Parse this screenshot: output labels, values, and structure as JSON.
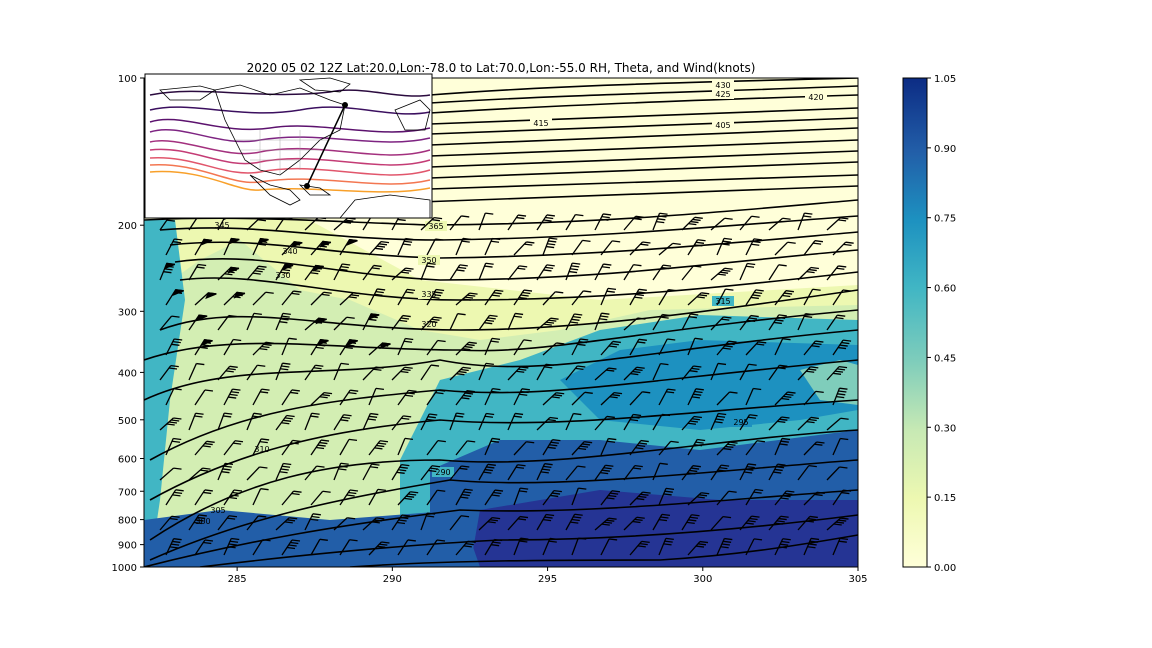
{
  "chart_data": {
    "type": "heatmap",
    "title": "2020 05 02 12Z Lat:20.0,Lon:-78.0 to Lat:70.0,Lon:-55.0 RH, Theta, and Wind(knots)",
    "xlabel": "",
    "ylabel": "",
    "xlim": [
      282,
      305
    ],
    "ylim": [
      1000,
      100
    ],
    "y_scale": "log",
    "x_ticks": [
      "285",
      "290",
      "295",
      "300",
      "305"
    ],
    "y_ticks": [
      "100",
      "200",
      "300",
      "400",
      "500",
      "600",
      "700",
      "800",
      "900",
      "1000"
    ],
    "colorbar": {
      "min": 0.0,
      "max": 1.05,
      "ticks": [
        "0.00",
        "0.15",
        "0.30",
        "0.45",
        "0.60",
        "0.75",
        "0.90",
        "1.05"
      ],
      "colormap": "YlGnBu"
    },
    "theta_contours": [
      "430",
      "425",
      "420",
      "415",
      "405",
      "365",
      "350",
      "345",
      "340",
      "335",
      "330",
      "320",
      "315",
      "310",
      "305",
      "300",
      "295",
      "290"
    ],
    "inset_map": "North American map with height contours and cross-section line"
  }
}
